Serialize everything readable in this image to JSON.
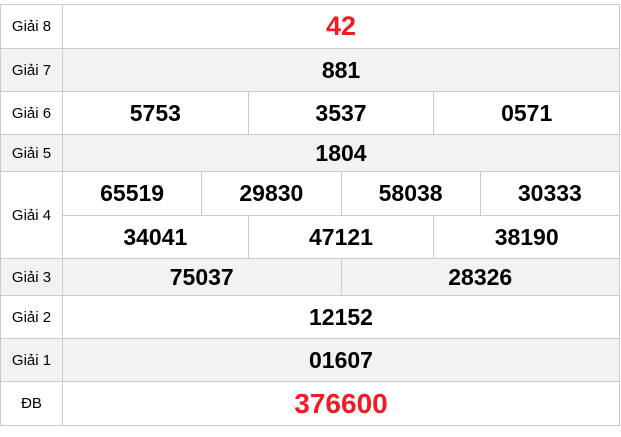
{
  "colors": {
    "highlight_red": "#ee1c25",
    "alt_row_bg": "#f2f2f2",
    "border": "#cbcbcb"
  },
  "table": {
    "rows": {
      "g8": {
        "label": "Giải 8",
        "numbers": [
          "42"
        ]
      },
      "g7": {
        "label": "Giải 7",
        "numbers": [
          "881"
        ]
      },
      "g6": {
        "label": "Giải 6",
        "numbers": [
          "5753",
          "3537",
          "0571"
        ]
      },
      "g5": {
        "label": "Giải 5",
        "numbers": [
          "1804"
        ]
      },
      "g4": {
        "label": "Giải 4",
        "numbers_line1": [
          "65519",
          "29830",
          "58038",
          "30333"
        ],
        "numbers_line2": [
          "34041",
          "47121",
          "38190"
        ]
      },
      "g3": {
        "label": "Giải 3",
        "numbers": [
          "75037",
          "28326"
        ]
      },
      "g2": {
        "label": "Giải 2",
        "numbers": [
          "12152"
        ]
      },
      "g1": {
        "label": "Giải 1",
        "numbers": [
          "01607"
        ]
      },
      "db": {
        "label": "ĐB",
        "numbers": [
          "376600"
        ]
      }
    }
  }
}
